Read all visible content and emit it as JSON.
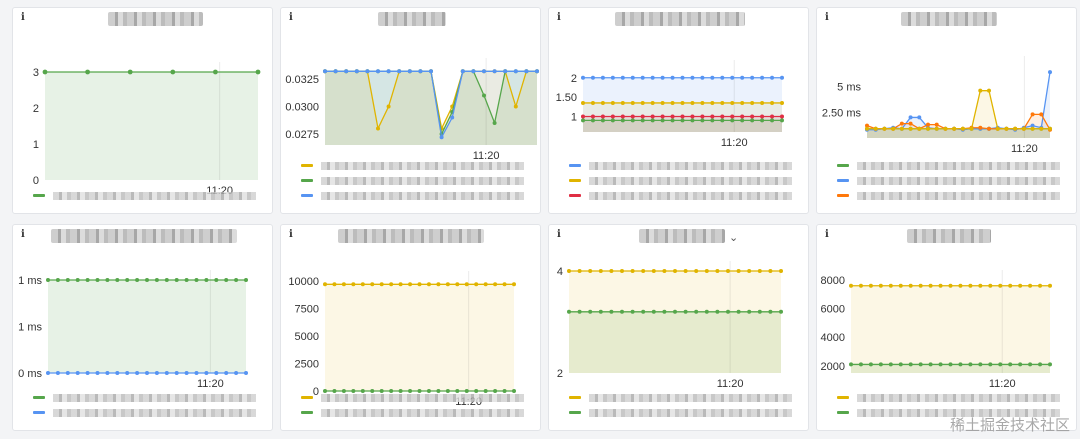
{
  "dashboard": {
    "info_glyph": "i",
    "watermark": "稀土掘金技术社区",
    "colors": {
      "green": "#56a64b",
      "yellow": "#e0b400",
      "blue": "#5794f2",
      "orange": "#ff780a",
      "red": "#e02f44"
    }
  },
  "chart_data": [
    {
      "type": "line",
      "ylim": [
        0,
        3
      ],
      "yticks": [
        "0",
        "1",
        "2",
        "3"
      ],
      "xticks": [
        "11:20"
      ],
      "series": [
        {
          "color": "green",
          "values": [
            3,
            3,
            3,
            3,
            3,
            3
          ]
        }
      ]
    },
    {
      "type": "line",
      "ylim": [
        0.0265,
        0.0335
      ],
      "yticks": [
        "0.0275",
        "0.0300",
        "0.0325"
      ],
      "xticks": [
        "11:20"
      ],
      "series": [
        {
          "color": "yellow",
          "values": [
            0.0332,
            0.0332,
            0.0332,
            0.0332,
            0.0332,
            0.028,
            0.03,
            0.0332,
            0.0332,
            0.0332,
            0.0332,
            0.028,
            0.03,
            0.0332,
            0.0332,
            0.0332,
            0.0332,
            0.0332,
            0.03,
            0.0332,
            0.0332
          ]
        },
        {
          "color": "green",
          "values": [
            0.0332,
            0.0332,
            0.0332,
            0.0332,
            0.0332,
            0.0332,
            0.0332,
            0.0332,
            0.0332,
            0.0332,
            0.0332,
            0.0275,
            0.0295,
            0.0332,
            0.0332,
            0.031,
            0.0285,
            0.0332,
            0.0332,
            0.0332,
            0.0332
          ]
        },
        {
          "color": "blue",
          "values": [
            0.0332,
            0.0332,
            0.0332,
            0.0332,
            0.0332,
            0.0332,
            0.0332,
            0.0332,
            0.0332,
            0.0332,
            0.0332,
            0.0272,
            0.029,
            0.0332,
            0.0332,
            0.0332,
            0.0332,
            0.0332,
            0.0332,
            0.0332,
            0.0332
          ]
        }
      ]
    },
    {
      "type": "line",
      "ylim": [
        0.6,
        2.2
      ],
      "yticks": [
        "1",
        "1.50",
        "2"
      ],
      "xticks": [
        "11:20"
      ],
      "series": [
        {
          "color": "blue",
          "values": [
            2,
            2,
            2,
            2,
            2,
            2,
            2,
            2,
            2,
            2,
            2,
            2,
            2,
            2,
            2,
            2,
            2,
            2,
            2,
            2,
            2
          ]
        },
        {
          "color": "yellow",
          "values": [
            1.35,
            1.35,
            1.35,
            1.35,
            1.35,
            1.35,
            1.35,
            1.35,
            1.35,
            1.35,
            1.35,
            1.35,
            1.35,
            1.35,
            1.35,
            1.35,
            1.35,
            1.35,
            1.35,
            1.35,
            1.35
          ]
        },
        {
          "color": "red",
          "values": [
            1,
            1,
            1,
            1,
            1,
            1,
            1,
            1,
            1,
            1,
            1,
            1,
            1,
            1,
            1,
            1,
            1,
            1,
            1,
            1,
            1
          ]
        },
        {
          "color": "green",
          "values": [
            0.9,
            0.9,
            0.9,
            0.9,
            0.9,
            0.9,
            0.9,
            0.9,
            0.9,
            0.9,
            0.9,
            0.9,
            0.9,
            0.9,
            0.9,
            0.9,
            0.9,
            0.9,
            0.9,
            0.9,
            0.9
          ]
        }
      ]
    },
    {
      "type": "line",
      "ylim": [
        0,
        7
      ],
      "yticks": [
        "2.50 ms",
        "5 ms"
      ],
      "ytick_values": [
        2.5,
        5
      ],
      "xticks": [
        "11:20"
      ],
      "series": [
        {
          "color": "green",
          "values": [
            0.9,
            0.9,
            0.9,
            0.9,
            0.9,
            0.9,
            0.9,
            0.9,
            0.9,
            0.9,
            0.9,
            0.9,
            0.9,
            0.9,
            0.9,
            0.9,
            0.9,
            0.9,
            0.9,
            0.9,
            0.9,
            0.9
          ]
        },
        {
          "color": "blue",
          "values": [
            0.8,
            0.8,
            0.9,
            1.0,
            0.9,
            2.0,
            2.0,
            1.0,
            0.9,
            0.9,
            0.9,
            0.8,
            0.9,
            0.9,
            0.9,
            1.0,
            0.9,
            0.8,
            1.0,
            1.2,
            1.0,
            6.4
          ]
        },
        {
          "color": "orange",
          "values": [
            1.2,
            0.9,
            0.9,
            0.9,
            1.4,
            1.4,
            0.9,
            1.3,
            1.3,
            0.9,
            0.9,
            0.9,
            1.0,
            1.0,
            0.9,
            0.9,
            0.9,
            0.9,
            0.9,
            2.3,
            2.3,
            0.8
          ]
        },
        {
          "color": "yellow",
          "values": [
            0.9,
            0.9,
            0.9,
            0.9,
            0.9,
            0.9,
            0.9,
            0.9,
            0.9,
            0.9,
            0.9,
            0.9,
            0.9,
            4.6,
            4.6,
            0.9,
            0.9,
            0.9,
            0.9,
            0.9,
            0.9,
            0.9
          ]
        }
      ]
    },
    {
      "type": "line",
      "ylim": [
        0,
        1
      ],
      "yticks": [
        "0 ms",
        "1 ms",
        "1 ms"
      ],
      "ytick_values": [
        0,
        0.5,
        1
      ],
      "xticks": [
        "11:20"
      ],
      "series": [
        {
          "color": "green",
          "values": [
            1,
            1,
            1,
            1,
            1,
            1,
            1,
            1,
            1,
            1,
            1,
            1,
            1,
            1,
            1,
            1,
            1,
            1,
            1,
            1,
            1
          ]
        },
        {
          "color": "blue",
          "values": [
            0,
            0,
            0,
            0,
            0,
            0,
            0,
            0,
            0,
            0,
            0,
            0,
            0,
            0,
            0,
            0,
            0,
            0,
            0,
            0,
            0
          ]
        }
      ]
    },
    {
      "type": "line",
      "ylim": [
        0,
        10000
      ],
      "yticks": [
        "0",
        "2500",
        "5000",
        "7500",
        "10000"
      ],
      "xticks": [
        "11:20"
      ],
      "series": [
        {
          "color": "yellow",
          "values": [
            9700,
            9700,
            9700,
            9700,
            9700,
            9700,
            9700,
            9700,
            9700,
            9700,
            9700,
            9700,
            9700,
            9700,
            9700,
            9700,
            9700,
            9700,
            9700,
            9700,
            9700
          ]
        },
        {
          "color": "green",
          "values": [
            0,
            0,
            0,
            0,
            0,
            0,
            0,
            0,
            0,
            0,
            0,
            0,
            0,
            0,
            0,
            0,
            0,
            0,
            0,
            0,
            0
          ]
        }
      ]
    },
    {
      "type": "line",
      "ylim": [
        2,
        4
      ],
      "yticks": [
        "2",
        "4"
      ],
      "xticks": [
        "11:20"
      ],
      "series": [
        {
          "color": "yellow",
          "values": [
            4,
            4,
            4,
            4,
            4,
            4,
            4,
            4,
            4,
            4,
            4,
            4,
            4,
            4,
            4,
            4,
            4,
            4,
            4,
            4,
            4
          ]
        },
        {
          "color": "green",
          "values": [
            3.2,
            3.2,
            3.2,
            3.2,
            3.2,
            3.2,
            3.2,
            3.2,
            3.2,
            3.2,
            3.2,
            3.2,
            3.2,
            3.2,
            3.2,
            3.2,
            3.2,
            3.2,
            3.2,
            3.2,
            3.2
          ]
        }
      ]
    },
    {
      "type": "line",
      "ylim": [
        1500,
        8000
      ],
      "yticks": [
        "2000",
        "4000",
        "6000",
        "8000"
      ],
      "xticks": [
        "11:20"
      ],
      "series": [
        {
          "color": "yellow",
          "values": [
            7600,
            7600,
            7600,
            7600,
            7600,
            7600,
            7600,
            7600,
            7600,
            7600,
            7600,
            7600,
            7600,
            7600,
            7600,
            7600,
            7600,
            7600,
            7600,
            7600,
            7600
          ]
        },
        {
          "color": "green",
          "values": [
            2100,
            2100,
            2100,
            2100,
            2100,
            2100,
            2100,
            2100,
            2100,
            2100,
            2100,
            2100,
            2100,
            2100,
            2100,
            2100,
            2100,
            2100,
            2100,
            2100,
            2100
          ]
        }
      ]
    }
  ]
}
